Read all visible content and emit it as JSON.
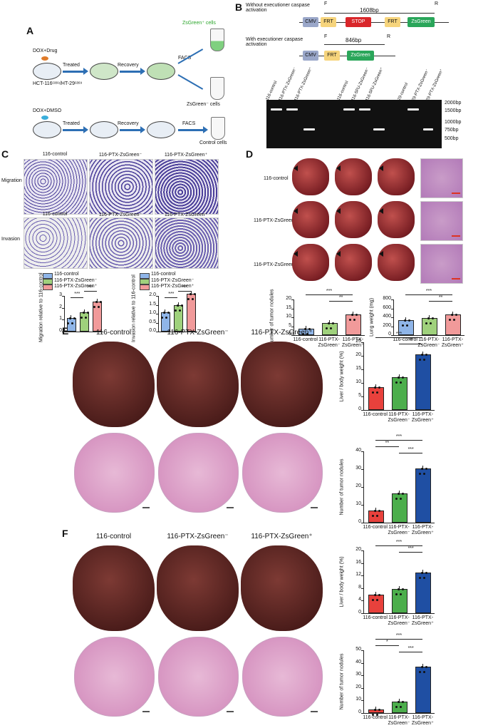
{
  "panels": {
    "A": "A",
    "B": "B",
    "C": "C",
    "D": "D",
    "E": "E",
    "F": "F"
  },
  "panelA": {
    "treat1": "DOX+Drug",
    "treat2": "DOX+DMSO",
    "treated": "Treated",
    "recovery": "Recovery",
    "facs": "FACS",
    "cells": "HCT-116ᶜᵃˢ⁹/HT-29ᶜᵃˢ⁹",
    "pos": "ZsGreen⁺ cells",
    "neg": "ZsGreen⁻ cells",
    "ctrl": "Control cells"
  },
  "panelB": {
    "without": "Without executioner caspase activation",
    "with": "With executioner caspase activation",
    "bp1": "1608bp",
    "bp2": "846bp",
    "F": "F",
    "R": "R",
    "cmv": "CMV",
    "frt": "FRT",
    "stop": "STOP",
    "zsgreen": "ZsGreen",
    "lanes": [
      "116-control",
      "116-PTX-ZsGreen⁻",
      "116-PTX-ZsGreen⁺",
      "116-control",
      "116-5FU-ZsGreen⁻",
      "116-5FU-ZsGreen⁺",
      "29-control",
      "29-PTX-ZsGreen⁻",
      "29-PTX-ZsGreen⁺"
    ],
    "ladder": [
      "2000bp",
      "1500bp",
      "1000bp",
      "750bp",
      "500bp"
    ]
  },
  "panelC": {
    "groups": [
      "116-control",
      "116-PTX-ZsGreen⁻",
      "116-PTX-ZsGreen⁺"
    ],
    "rows": [
      "Migration",
      "Invasion"
    ],
    "ylab1": "Migration relative to 116-control",
    "ylab2": "Invasion relative to 116-control",
    "ticks1": [
      "3",
      "2",
      "1",
      "0"
    ],
    "ticks2": [
      "2.0",
      "1.5",
      "1.0",
      "0.5",
      "0.0"
    ],
    "stars": [
      "***",
      "***",
      "***",
      "***"
    ]
  },
  "panelD": {
    "rows": [
      "116-control",
      "116-PTX-ZsGreen⁻",
      "116-PTX-ZsGreen⁺"
    ],
    "ylab1": "Number of tumor nodules",
    "ylab2": "Lung weight (mg)",
    "ticks1": [
      "20",
      "15",
      "10",
      "5",
      "0"
    ],
    "ticks2": [
      "800",
      "600",
      "400",
      "200",
      "0"
    ],
    "xl": [
      "116-control",
      "116-PTX-\nZsGreen⁻",
      "116-PTX-\nZsGreen⁺"
    ],
    "stars": [
      "***",
      "**",
      "***",
      "**"
    ]
  },
  "panelE": {
    "cols": [
      "116-control",
      "116-PTX-ZsGreen⁻",
      "116-PTX-ZsGreen⁺"
    ],
    "ylab1": "Liver / body weight (%)",
    "ylab2": "Number of tumor nodules",
    "ticks1": [
      "25",
      "20",
      "15",
      "10",
      "5",
      "0"
    ],
    "ticks2": [
      "40",
      "30",
      "20",
      "10",
      "0"
    ],
    "stars": [
      "***",
      "**",
      "***",
      "**",
      "***"
    ]
  },
  "panelF": {
    "cols": [
      "116-control",
      "116-PTX-ZsGreen⁻",
      "116-PTX-ZsGreen⁺"
    ],
    "ylab1": "Liver / body weight (%)",
    "ylab2": "Number of tumor nodules",
    "ticks1": [
      "20",
      "16",
      "12",
      "8",
      "4",
      "0"
    ],
    "ticks2": [
      "50",
      "40",
      "30",
      "20",
      "10",
      "0"
    ],
    "stars": [
      "***",
      "***",
      "***",
      "*",
      "***"
    ]
  },
  "xlabels": [
    "116-control",
    "116-PTX-",
    "ZsGreen⁻",
    "116-PTX-",
    "ZsGreen⁺"
  ],
  "chart_data": [
    {
      "type": "bar",
      "categories": [
        "116-control",
        "116-PTX-ZsGreen⁻",
        "116-PTX-ZsGreen⁺"
      ],
      "values": [
        1.0,
        1.5,
        2.4
      ],
      "ylabel": "Migration relative to 116-control",
      "ylim": [
        0,
        3
      ]
    },
    {
      "type": "bar",
      "categories": [
        "116-control",
        "116-PTX-ZsGreen⁻",
        "116-PTX-ZsGreen⁺"
      ],
      "values": [
        1.0,
        1.4,
        2.05
      ],
      "ylabel": "Invasion relative to 116-control",
      "ylim": [
        0,
        2.0
      ]
    },
    {
      "type": "bar",
      "categories": [
        "116-control",
        "116-PTX-ZsGreen⁻",
        "116-PTX-ZsGreen⁺"
      ],
      "values": [
        3,
        6,
        11
      ],
      "ylabel": "Number of tumor nodules",
      "ylim": [
        0,
        20
      ]
    },
    {
      "type": "bar",
      "categories": [
        "116-control",
        "116-PTX-ZsGreen⁻",
        "116-PTX-ZsGreen⁺"
      ],
      "values": [
        310,
        355,
        440
      ],
      "ylabel": "Lung weight (mg)",
      "ylim": [
        0,
        800
      ]
    },
    {
      "type": "bar",
      "categories": [
        "116-control",
        "116-PTX-ZsGreen⁻",
        "116-PTX-ZsGreen⁺"
      ],
      "values": [
        8,
        11.5,
        20
      ],
      "ylabel": "Liver / body weight (%)",
      "ylim": [
        0,
        25
      ]
    },
    {
      "type": "bar",
      "categories": [
        "116-control",
        "116-PTX-ZsGreen⁻",
        "116-PTX-ZsGreen⁺"
      ],
      "values": [
        6,
        15.5,
        29.5
      ],
      "ylabel": "Number of tumor nodules",
      "ylim": [
        0,
        40
      ]
    },
    {
      "type": "bar",
      "categories": [
        "116-control",
        "116-PTX-ZsGreen⁻",
        "116-PTX-ZsGreen⁺"
      ],
      "values": [
        5.5,
        7.2,
        12.5
      ],
      "ylabel": "Liver / body weight (%)",
      "ylim": [
        0,
        20
      ]
    },
    {
      "type": "bar",
      "categories": [
        "116-control",
        "116-PTX-ZsGreen⁻",
        "116-PTX-ZsGreen⁺"
      ],
      "values": [
        1.5,
        8,
        36
      ],
      "ylabel": "Number of tumor nodules",
      "ylim": [
        0,
        50
      ]
    }
  ],
  "colors": {
    "red": "#e8413c",
    "green": "#4cae4c",
    "blue": "#1f4fa3",
    "lblue": "#8fb5e8",
    "lgreen": "#9fd17c",
    "pink": "#f19a9a"
  }
}
